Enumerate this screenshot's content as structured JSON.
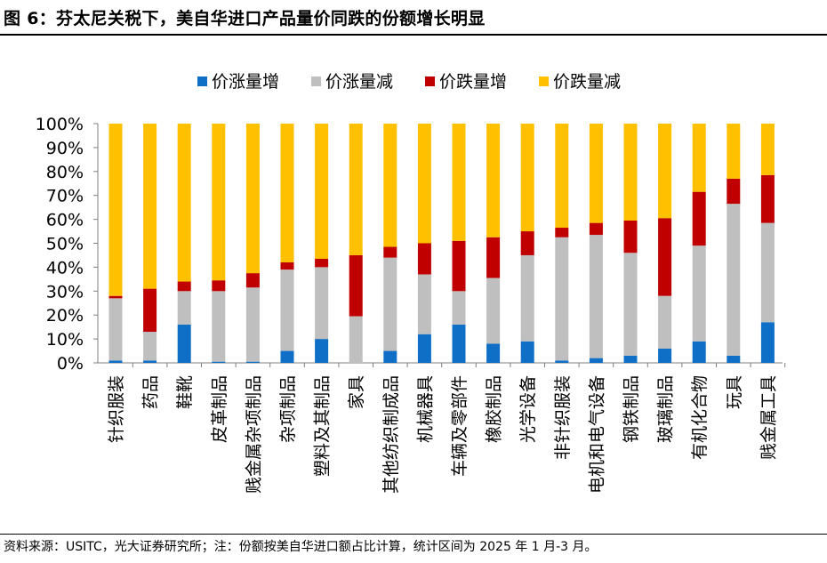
{
  "title": "图 6：芬太尼关税下，美自华进口产品量价同跌的份额增长明显",
  "footer": "资料来源：USITC，光大证券研究所；注：份额按美自华进口额占比计算，统计区间为 2025 年 1 月-3 月。",
  "chart_data": {
    "type": "bar",
    "stacked": true,
    "orientation": "vertical",
    "title": "",
    "xlabel": "",
    "ylabel": "",
    "ylim": [
      0,
      100
    ],
    "y_ticks": [
      "0%",
      "10%",
      "20%",
      "30%",
      "40%",
      "50%",
      "60%",
      "70%",
      "80%",
      "90%",
      "100%"
    ],
    "grid": false,
    "legend_position": "top",
    "categories": [
      "针织服装",
      "药品",
      "鞋靴",
      "皮革制品",
      "贱金属杂项制品",
      "杂项制品",
      "塑料及其制品",
      "家具",
      "其他纺织制成品",
      "机械器具",
      "车辆及零部件",
      "橡胶制品",
      "光学设备",
      "非针织服装",
      "电机和电气设备",
      "钢铁制品",
      "玻璃制品",
      "有机化合物",
      "玩具",
      "贱金属工具"
    ],
    "series": [
      {
        "name": "价涨量增",
        "color": "#0F6FC6",
        "values": [
          1,
          1,
          16,
          0.5,
          0.5,
          5,
          10,
          0,
          5,
          12,
          16,
          8,
          9,
          1,
          2,
          3,
          6,
          9,
          3,
          17
        ]
      },
      {
        "name": "价涨量减",
        "color": "#BFBFBF",
        "values": [
          26,
          12,
          14,
          29.5,
          31,
          34,
          30,
          19.5,
          39,
          25,
          14,
          27.5,
          36,
          51.5,
          51.5,
          43,
          22,
          40,
          63.5,
          41.5
        ]
      },
      {
        "name": "价跌量增",
        "color": "#C00000",
        "values": [
          1,
          18,
          4,
          4.5,
          6,
          3,
          3.5,
          25.5,
          4.5,
          13,
          21,
          17,
          10,
          4,
          5,
          13.5,
          32.5,
          22.5,
          10.5,
          20
        ]
      },
      {
        "name": "价跌量减",
        "color": "#FFC000",
        "values": [
          72,
          69,
          66,
          65.5,
          62.5,
          58,
          56.5,
          55,
          51.5,
          50,
          49,
          47.5,
          45,
          43.5,
          41.5,
          40.5,
          39.5,
          28.5,
          23,
          21.5
        ]
      }
    ]
  }
}
